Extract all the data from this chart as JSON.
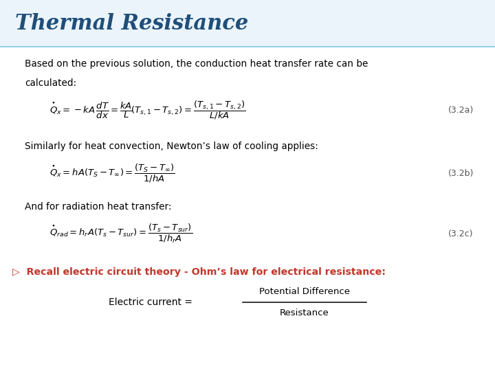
{
  "title": "Thermal Resistance",
  "title_color": "#1F4E79",
  "title_fontsize": 22,
  "bg_color": "#FFFFFF",
  "body_text_color": "#000000",
  "highlight_color": "#C0392B",
  "eq_label_color": "#555555",
  "line1": "Based on the previous solution, the conduction heat transfer rate can be",
  "line2": "calculated:",
  "label1": "(3.2a)",
  "line3": "Similarly for heat convection, Newton’s law of cooling applies:",
  "label2": "(3.2b)",
  "line4": "And for radiation heat transfer:",
  "label3": "(3.2c)",
  "bullet_line": "▷  Recall electric circuit theory - Ohm’s law for electrical resistance:",
  "fraction_prefix": "Electric current = ",
  "numerator": "Potential Difference",
  "denominator": "Resistance"
}
